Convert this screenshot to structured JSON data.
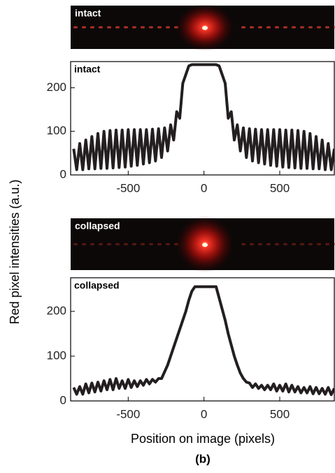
{
  "ylabel": "Red pixel intensities (a.u.)",
  "xlabel": "Position on image (pixels)",
  "caption": "(b)",
  "chart_data": [
    {
      "type": "line",
      "image_label": "intact",
      "annotation": "intact",
      "color": "#231f20",
      "x": [
        -860,
        -840,
        -820,
        -800,
        -780,
        -760,
        -740,
        -720,
        -700,
        -680,
        -660,
        -640,
        -620,
        -600,
        -580,
        -560,
        -540,
        -520,
        -500,
        -480,
        -460,
        -440,
        -420,
        -400,
        -380,
        -360,
        -340,
        -320,
        -300,
        -280,
        -260,
        -240,
        -220,
        -200,
        -180,
        -160,
        -140,
        -120,
        -100,
        -80,
        -60,
        -40,
        -20,
        0,
        20,
        40,
        60,
        80,
        100,
        120,
        140,
        160,
        180,
        200,
        220,
        240,
        260,
        280,
        300,
        320,
        340,
        360,
        380,
        400,
        420,
        440,
        460,
        480,
        500,
        520,
        540,
        560,
        580,
        600,
        620,
        640,
        660,
        680,
        700,
        720,
        740,
        760,
        780,
        800,
        820,
        840,
        860
      ],
      "values": [
        60,
        12,
        72,
        12,
        80,
        14,
        88,
        14,
        95,
        15,
        100,
        15,
        102,
        16,
        103,
        17,
        103,
        18,
        104,
        20,
        104,
        22,
        104,
        25,
        104,
        28,
        105,
        32,
        106,
        40,
        108,
        55,
        115,
        80,
        145,
        130,
        210,
        230,
        250,
        253,
        253,
        253,
        253,
        253,
        253,
        253,
        253,
        253,
        250,
        230,
        210,
        130,
        145,
        80,
        115,
        55,
        108,
        40,
        106,
        32,
        105,
        28,
        104,
        25,
        104,
        22,
        104,
        20,
        104,
        18,
        103,
        17,
        103,
        16,
        102,
        15,
        100,
        15,
        95,
        14,
        88,
        14,
        80,
        12,
        72,
        12,
        60
      ],
      "xlim": [
        -880,
        860
      ],
      "ylim": [
        0,
        260
      ],
      "xticks": [
        -500,
        0,
        500
      ],
      "yticks": [
        0,
        100,
        200
      ]
    },
    {
      "type": "line",
      "image_label": "collapsed",
      "annotation": "collapsed",
      "color": "#231f20",
      "x": [
        -860,
        -840,
        -820,
        -800,
        -780,
        -760,
        -740,
        -720,
        -700,
        -680,
        -660,
        -640,
        -620,
        -600,
        -580,
        -560,
        -540,
        -520,
        -500,
        -480,
        -460,
        -440,
        -420,
        -400,
        -380,
        -360,
        -340,
        -320,
        -300,
        -280,
        -260,
        -240,
        -220,
        -200,
        -180,
        -160,
        -140,
        -120,
        -100,
        -80,
        -60,
        -40,
        -20,
        0,
        20,
        40,
        60,
        80,
        100,
        120,
        140,
        160,
        180,
        200,
        220,
        240,
        260,
        280,
        300,
        320,
        340,
        360,
        380,
        400,
        420,
        440,
        460,
        480,
        500,
        520,
        540,
        560,
        580,
        600,
        620,
        640,
        660,
        680,
        700,
        720,
        740,
        760,
        780,
        800,
        820,
        840,
        860
      ],
      "values": [
        30,
        15,
        32,
        15,
        38,
        18,
        40,
        20,
        42,
        22,
        45,
        25,
        48,
        25,
        50,
        28,
        45,
        28,
        48,
        30,
        45,
        32,
        45,
        35,
        48,
        38,
        48,
        42,
        50,
        50,
        65,
        80,
        100,
        120,
        140,
        160,
        180,
        200,
        225,
        245,
        255,
        255,
        255,
        255,
        255,
        255,
        255,
        255,
        230,
        205,
        180,
        150,
        125,
        100,
        80,
        62,
        50,
        42,
        40,
        30,
        38,
        28,
        35,
        25,
        35,
        25,
        38,
        22,
        35,
        22,
        38,
        20,
        35,
        20,
        32,
        18,
        30,
        18,
        32,
        16,
        30,
        16,
        28,
        15,
        30,
        14,
        28
      ],
      "xlim": [
        -880,
        860
      ],
      "ylim": [
        0,
        275
      ],
      "xticks": [
        -500,
        0,
        500
      ],
      "yticks": [
        0,
        100,
        200
      ]
    }
  ]
}
